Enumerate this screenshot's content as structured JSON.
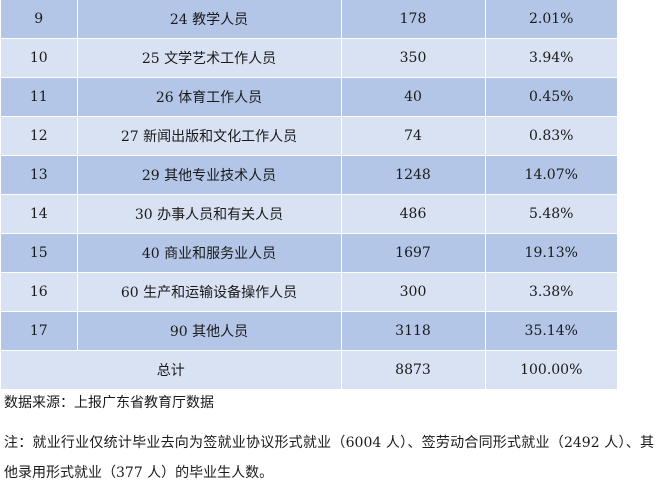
{
  "table": {
    "rows": [
      {
        "no": "9",
        "occupation": "24 教学人员",
        "count": "178",
        "percent": "2.01%"
      },
      {
        "no": "10",
        "occupation": "25 文学艺术工作人员",
        "count": "350",
        "percent": "3.94%"
      },
      {
        "no": "11",
        "occupation": "26 体育工作人员",
        "count": "40",
        "percent": "0.45%"
      },
      {
        "no": "12",
        "occupation": "27 新闻出版和文化工作人员",
        "count": "74",
        "percent": "0.83%"
      },
      {
        "no": "13",
        "occupation": "29 其他专业技术人员",
        "count": "1248",
        "percent": "14.07%"
      },
      {
        "no": "14",
        "occupation": "30 办事人员和有关人员",
        "count": "486",
        "percent": "5.48%"
      },
      {
        "no": "15",
        "occupation": "40 商业和服务业人员",
        "count": "1697",
        "percent": "19.13%"
      },
      {
        "no": "16",
        "occupation": "60 生产和运输设备操作人员",
        "count": "300",
        "percent": "3.38%"
      },
      {
        "no": "17",
        "occupation": "90 其他人员",
        "count": "3118",
        "percent": "35.14%"
      }
    ],
    "total": {
      "label": "总计",
      "count": "8873",
      "percent": "100.00%"
    }
  },
  "source": "数据来源：上报广东省教育厅数据",
  "note": "注：就业行业仅统计毕业去向为签就业协议形式就业（6004 人）、签劳动合同形式就业（2492 人）、其他录用形式就业（377 人）的毕业生人数。"
}
